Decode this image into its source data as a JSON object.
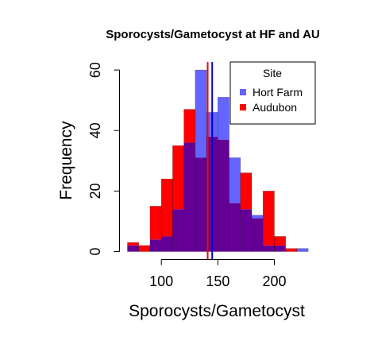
{
  "chart_data": {
    "type": "bar",
    "title": "Sporocysts/Gametocyst at HF and AU",
    "xlabel": "Sporocysts/Gametocyst",
    "ylabel": "Frequency",
    "xlim": [
      70,
      230
    ],
    "ylim": [
      0,
      60
    ],
    "xticks": [
      100,
      150,
      200
    ],
    "yticks": [
      0,
      20,
      40,
      60
    ],
    "bin_edges": [
      70,
      80,
      90,
      100,
      110,
      120,
      130,
      140,
      150,
      160,
      170,
      180,
      190,
      200,
      210,
      220,
      230
    ],
    "series": [
      {
        "name": "Hort Farm",
        "color": "#6464FF",
        "values": [
          2,
          0,
          4,
          5,
          14,
          36,
          60,
          46,
          51,
          31,
          14,
          12,
          2,
          2,
          0,
          1
        ]
      },
      {
        "name": "Audubon",
        "color": "#FF0000",
        "values": [
          3,
          2,
          15,
          24,
          35,
          47,
          31,
          38,
          37,
          16,
          26,
          11,
          20,
          5,
          1,
          0
        ]
      }
    ],
    "overlap_color": "#640096",
    "vlines": [
      {
        "series": "Audubon",
        "x": 141,
        "color": "#FF0000"
      },
      {
        "series": "Hort Farm",
        "x": 145,
        "color": "#0000C8"
      }
    ],
    "legend": {
      "title": "Site",
      "position": "top-right",
      "entries": [
        {
          "label": "Hort Farm",
          "color": "#6464FF"
        },
        {
          "label": "Audubon",
          "color": "#FF0000"
        }
      ]
    }
  }
}
